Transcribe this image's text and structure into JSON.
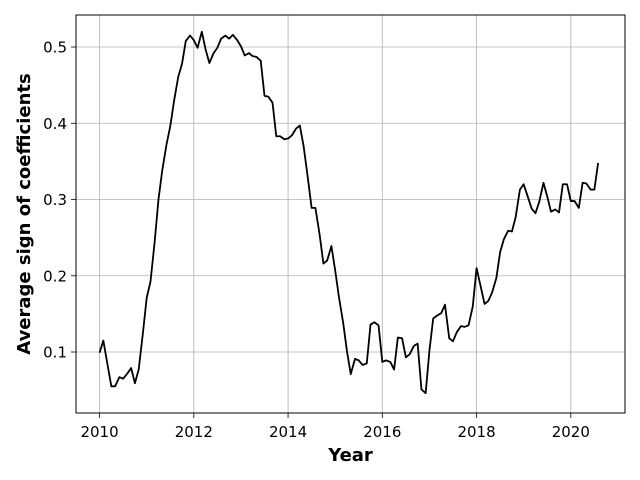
{
  "chart_data": {
    "type": "line",
    "title": "",
    "xlabel": "Year",
    "ylabel": "Average sign of coefficients",
    "xlim": [
      2009.5,
      2021.15
    ],
    "ylim": [
      0.02,
      0.542
    ],
    "x_ticks": [
      2010,
      2012,
      2014,
      2016,
      2018,
      2020
    ],
    "x_tick_labels": [
      "2010",
      "2012",
      "2014",
      "2016",
      "2018",
      "2020"
    ],
    "y_ticks": [
      0.1,
      0.2,
      0.3,
      0.4,
      0.5
    ],
    "y_tick_labels": [
      "0.1",
      "0.2",
      "0.3",
      "0.4",
      "0.5"
    ],
    "grid": true,
    "legend": "none",
    "line_color": "#000000",
    "series": [
      {
        "x": [
          2010.0,
          2010.08,
          2010.17,
          2010.25,
          2010.33,
          2010.42,
          2010.5,
          2010.58,
          2010.67,
          2010.75,
          2010.83,
          2010.92,
          2011.0,
          2011.08,
          2011.17,
          2011.25,
          2011.33,
          2011.42,
          2011.5,
          2011.58,
          2011.67,
          2011.75,
          2011.83,
          2011.92,
          2012.0,
          2012.08,
          2012.17,
          2012.25,
          2012.33,
          2012.42,
          2012.5,
          2012.58,
          2012.67,
          2012.75,
          2012.83,
          2012.92,
          2013.0,
          2013.08,
          2013.17,
          2013.25,
          2013.33,
          2013.42,
          2013.5,
          2013.58,
          2013.67,
          2013.75,
          2013.83,
          2013.92,
          2014.0,
          2014.08,
          2014.17,
          2014.25,
          2014.33,
          2014.42,
          2014.5,
          2014.58,
          2014.67,
          2014.75,
          2014.83,
          2014.92,
          2015.0,
          2015.08,
          2015.17,
          2015.25,
          2015.33,
          2015.42,
          2015.5,
          2015.58,
          2015.67,
          2015.75,
          2015.83,
          2015.92,
          2016.0,
          2016.08,
          2016.17,
          2016.25,
          2016.33,
          2016.42,
          2016.5,
          2016.58,
          2016.67,
          2016.75,
          2016.83,
          2016.92,
          2017.0,
          2017.08,
          2017.17,
          2017.25,
          2017.33,
          2017.42,
          2017.5,
          2017.58,
          2017.67,
          2017.75,
          2017.83,
          2017.92,
          2018.0,
          2018.08,
          2018.17,
          2018.25,
          2018.33,
          2018.42,
          2018.5,
          2018.58,
          2018.67,
          2018.75,
          2018.83,
          2018.92,
          2019.0,
          2019.08,
          2019.17,
          2019.25,
          2019.33,
          2019.42,
          2019.5,
          2019.58,
          2019.67,
          2019.75,
          2019.83,
          2019.92,
          2020.0,
          2020.08,
          2020.17,
          2020.25,
          2020.33,
          2020.42,
          2020.5,
          2020.58
        ],
        "values": [
          0.099,
          0.115,
          0.083,
          0.055,
          0.055,
          0.067,
          0.065,
          0.071,
          0.079,
          0.059,
          0.077,
          0.125,
          0.171,
          0.192,
          0.245,
          0.3,
          0.338,
          0.372,
          0.396,
          0.429,
          0.461,
          0.478,
          0.508,
          0.515,
          0.509,
          0.499,
          0.52,
          0.497,
          0.479,
          0.492,
          0.499,
          0.511,
          0.515,
          0.511,
          0.516,
          0.509,
          0.501,
          0.489,
          0.492,
          0.488,
          0.487,
          0.482,
          0.436,
          0.435,
          0.427,
          0.383,
          0.383,
          0.379,
          0.38,
          0.384,
          0.393,
          0.397,
          0.37,
          0.328,
          0.289,
          0.289,
          0.254,
          0.216,
          0.22,
          0.239,
          0.207,
          0.172,
          0.138,
          0.101,
          0.071,
          0.091,
          0.089,
          0.083,
          0.085,
          0.136,
          0.139,
          0.135,
          0.087,
          0.089,
          0.087,
          0.077,
          0.119,
          0.118,
          0.093,
          0.097,
          0.108,
          0.111,
          0.051,
          0.046,
          0.102,
          0.144,
          0.148,
          0.151,
          0.162,
          0.118,
          0.114,
          0.126,
          0.134,
          0.133,
          0.135,
          0.16,
          0.21,
          0.188,
          0.163,
          0.167,
          0.178,
          0.197,
          0.231,
          0.248,
          0.259,
          0.258,
          0.277,
          0.313,
          0.32,
          0.305,
          0.288,
          0.282,
          0.297,
          0.322,
          0.304,
          0.284,
          0.287,
          0.283,
          0.32,
          0.32,
          0.298,
          0.298,
          0.289,
          0.322,
          0.321,
          0.313,
          0.313,
          0.348
        ]
      }
    ]
  }
}
